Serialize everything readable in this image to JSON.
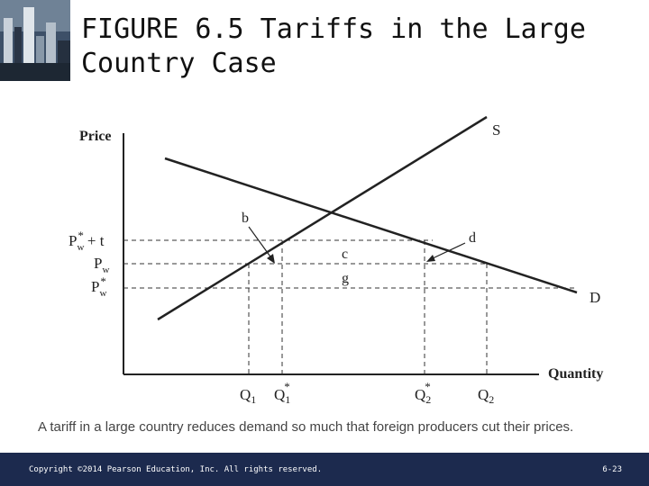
{
  "slide": {
    "title_line1": "FIGURE 6.5  Tariffs in the Large",
    "title_line2": "Country Case",
    "corner_image": "city-skyline-photo"
  },
  "diagram": {
    "y_axis_label": "Price",
    "x_axis_label": "Quantity",
    "curve_labels": {
      "supply": "S",
      "demand": "D"
    },
    "point_labels": {
      "b": "b",
      "c": "c",
      "d": "d",
      "g": "g"
    },
    "price_labels": {
      "pw_star_plus_t": {
        "base": "P",
        "sub": "w",
        "sup": "*",
        "tail": "+ t"
      },
      "pw": {
        "base": "P",
        "sub": "w"
      },
      "pw_star": {
        "base": "P",
        "sub": "w",
        "sup": "*"
      }
    },
    "quantity_labels": {
      "q1": {
        "base": "Q",
        "sub": "1"
      },
      "q1_star": {
        "base": "Q",
        "sub": "1",
        "sup": "*"
      },
      "q2_star": {
        "base": "Q",
        "sub": "2",
        "sup": "*"
      },
      "q2": {
        "base": "Q",
        "sub": "2"
      }
    }
  },
  "caption": "A tariff in a large country reduces demand so much that foreign producers cut their prices.",
  "footer": {
    "copyright": "Copyright ©2014 Pearson Education, Inc. All rights reserved.",
    "slide_number": "6-23"
  }
}
